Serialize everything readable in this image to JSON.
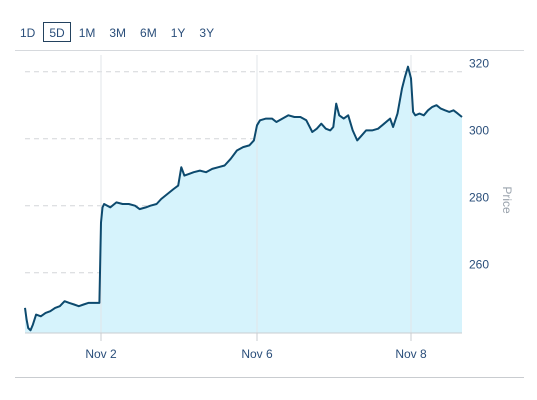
{
  "range_selector": {
    "options": [
      "1D",
      "5D",
      "1M",
      "3M",
      "6M",
      "1Y",
      "3Y"
    ],
    "selected": "5D"
  },
  "colors": {
    "line": "#0d4a6e",
    "area": "#d6f3fc",
    "accent": "#23425f"
  },
  "chart_data": {
    "type": "area",
    "title": "",
    "xlabel": "",
    "ylabel": "Price",
    "y_axis_position": "right",
    "ylim": [
      242,
      325
    ],
    "y_ticks": [
      260,
      280,
      300,
      320
    ],
    "x_ticks": [
      {
        "label": "Nov 2",
        "x": 1
      },
      {
        "label": "Nov 6",
        "x": 2
      },
      {
        "label": "Nov 8",
        "x": 3
      }
    ],
    "xlim": [
      0,
      3.35
    ],
    "grid": "horizontal dashed",
    "series": [
      {
        "points": [
          [
            0.0,
            249.5
          ],
          [
            0.01,
            246.0
          ],
          [
            0.02,
            243.5
          ],
          [
            0.035,
            242.8
          ],
          [
            0.05,
            244.5
          ],
          [
            0.07,
            247.5
          ],
          [
            0.1,
            247.0
          ],
          [
            0.13,
            248.0
          ],
          [
            0.16,
            248.5
          ],
          [
            0.19,
            249.5
          ],
          [
            0.22,
            250.0
          ],
          [
            0.25,
            251.5
          ],
          [
            0.28,
            251.0
          ],
          [
            0.31,
            250.5
          ],
          [
            0.34,
            250.0
          ],
          [
            0.37,
            250.5
          ],
          [
            0.4,
            251.0
          ],
          [
            0.47,
            251.0
          ],
          [
            0.48,
            275.0
          ],
          [
            0.49,
            279.5
          ],
          [
            0.5,
            280.5
          ],
          [
            0.54,
            279.5
          ],
          [
            0.58,
            281.0
          ],
          [
            0.62,
            280.5
          ],
          [
            0.66,
            280.5
          ],
          [
            0.7,
            280.0
          ],
          [
            0.73,
            279.0
          ],
          [
            0.77,
            279.5
          ],
          [
            0.8,
            280.0
          ],
          [
            0.84,
            280.5
          ],
          [
            0.87,
            282.0
          ],
          [
            0.91,
            283.5
          ],
          [
            0.95,
            285.0
          ],
          [
            0.98,
            286.0
          ],
          [
            1.0,
            291.5
          ],
          [
            1.02,
            289.0
          ],
          [
            1.05,
            289.5
          ],
          [
            1.08,
            290.0
          ],
          [
            1.12,
            290.5
          ],
          [
            1.16,
            290.0
          ],
          [
            1.2,
            291.0
          ],
          [
            1.24,
            291.5
          ],
          [
            1.28,
            292.0
          ],
          [
            1.32,
            294.0
          ],
          [
            1.36,
            296.5
          ],
          [
            1.4,
            297.5
          ],
          [
            1.44,
            298.0
          ],
          [
            1.47,
            299.5
          ],
          [
            1.49,
            304.0
          ],
          [
            1.51,
            305.5
          ],
          [
            1.55,
            306.0
          ],
          [
            1.59,
            306.0
          ],
          [
            1.62,
            305.0
          ],
          [
            1.66,
            306.0
          ],
          [
            1.7,
            307.0
          ],
          [
            1.74,
            306.5
          ],
          [
            1.78,
            306.5
          ],
          [
            1.82,
            305.5
          ],
          [
            1.86,
            302.0
          ],
          [
            1.89,
            303.0
          ],
          [
            1.92,
            304.5
          ],
          [
            1.95,
            303.0
          ],
          [
            1.98,
            302.5
          ],
          [
            2.0,
            303.5
          ],
          [
            2.02,
            310.5
          ],
          [
            2.04,
            307.0
          ],
          [
            2.07,
            306.0
          ],
          [
            2.1,
            307.0
          ],
          [
            2.13,
            302.5
          ],
          [
            2.16,
            299.5
          ],
          [
            2.19,
            301.0
          ],
          [
            2.22,
            302.5
          ],
          [
            2.26,
            302.5
          ],
          [
            2.3,
            303.0
          ],
          [
            2.34,
            304.5
          ],
          [
            2.38,
            306.0
          ],
          [
            2.4,
            303.5
          ],
          [
            2.43,
            307.5
          ],
          [
            2.46,
            315.0
          ],
          [
            2.48,
            318.5
          ],
          [
            2.5,
            321.5
          ],
          [
            2.52,
            318.0
          ],
          [
            2.54,
            308.0
          ],
          [
            2.56,
            307.0
          ],
          [
            2.6,
            307.5
          ],
          [
            2.64,
            307.0
          ],
          [
            2.68,
            308.5
          ],
          [
            2.72,
            309.5
          ],
          [
            2.76,
            310.0
          ],
          [
            2.8,
            309.0
          ],
          [
            2.84,
            308.5
          ],
          [
            2.88,
            308.0
          ],
          [
            2.92,
            308.5
          ],
          [
            2.96,
            307.5
          ],
          [
            3.0,
            306.5
          ]
        ]
      }
    ]
  }
}
